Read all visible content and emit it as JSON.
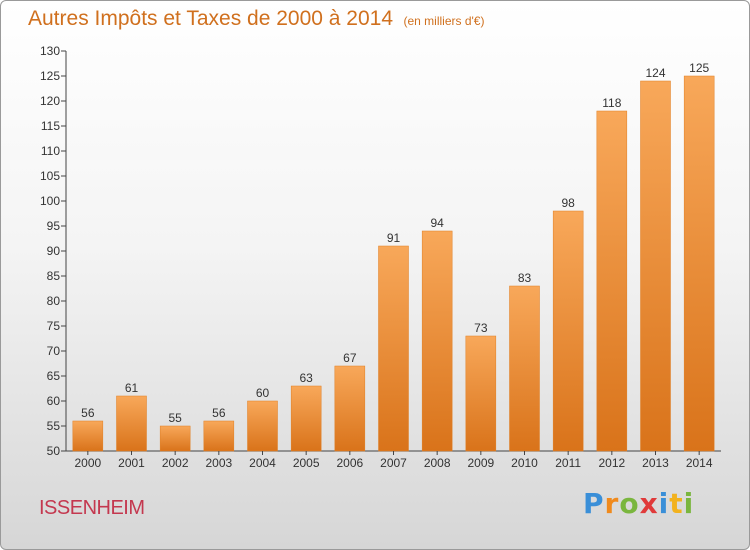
{
  "header": {
    "title": "Autres Impôts et Taxes de 2000 à 2014",
    "subtitle": "(en milliers d'€)"
  },
  "footer": {
    "city": "ISSENHEIM",
    "logo": {
      "letters": [
        "P",
        "r",
        "o",
        "x",
        "i",
        "t",
        "i"
      ],
      "colors": [
        "#3a8fd8",
        "#f08a1c",
        "#7ab63e",
        "#e03a3a",
        "#3a8fd8",
        "#f2b21e",
        "#7ab63e"
      ]
    }
  },
  "colors": {
    "bar": "#f08a2c",
    "bar_light": "#f8a85a",
    "bar_dark": "#d9731a",
    "text": "#333333"
  },
  "chart_data": {
    "type": "bar",
    "categories": [
      "2000",
      "2001",
      "2002",
      "2003",
      "2004",
      "2005",
      "2006",
      "2007",
      "2008",
      "2009",
      "2010",
      "2011",
      "2012",
      "2013",
      "2014"
    ],
    "values": [
      56,
      61,
      55,
      56,
      60,
      63,
      67,
      91,
      94,
      73,
      83,
      98,
      118,
      124,
      125
    ],
    "ylim": [
      50,
      130
    ],
    "yticks": [
      50,
      55,
      60,
      65,
      70,
      75,
      80,
      85,
      90,
      95,
      100,
      105,
      110,
      115,
      120,
      125,
      130
    ],
    "data_labels": true,
    "grid": false
  }
}
